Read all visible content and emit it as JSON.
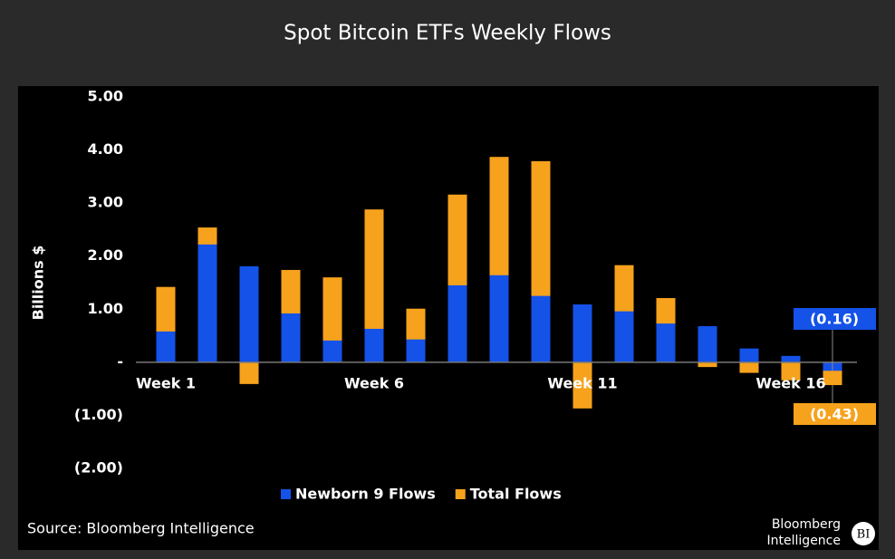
{
  "chart_data": {
    "type": "bar",
    "title": "Spot Bitcoin ETFs Weekly Flows",
    "y_label": "Billions $",
    "source": "Source: Bloomberg Intelligence",
    "brand": {
      "line1": "Bloomberg",
      "line2": "Intelligence",
      "badge": "BI"
    },
    "categories": [
      "Week 1",
      null,
      null,
      null,
      null,
      "Week 6",
      null,
      null,
      null,
      null,
      "Week 11",
      null,
      null,
      null,
      null,
      "Week 16",
      null
    ],
    "series": [
      {
        "name": "Newborn 9 Flows",
        "color": "#1452e8",
        "values": [
          0.58,
          2.22,
          1.81,
          0.92,
          0.41,
          0.63,
          0.43,
          1.45,
          1.64,
          1.25,
          1.09,
          0.96,
          0.73,
          0.68,
          0.26,
          0.12,
          -0.16
        ],
        "value_labels": [
          null,
          null,
          null,
          null,
          null,
          null,
          null,
          null,
          null,
          null,
          null,
          null,
          null,
          null,
          null,
          null,
          "(0.16)"
        ]
      },
      {
        "name": "Total Flows",
        "color": "#f6a21c",
        "values": [
          1.42,
          2.54,
          -0.41,
          1.74,
          1.6,
          2.88,
          1.01,
          3.16,
          3.87,
          3.79,
          -0.87,
          1.83,
          1.21,
          -0.09,
          -0.2,
          -0.34,
          -0.43
        ],
        "value_labels": [
          null,
          null,
          null,
          null,
          null,
          null,
          null,
          null,
          null,
          null,
          null,
          null,
          null,
          null,
          null,
          null,
          "(0.43)"
        ]
      }
    ],
    "ylim": [
      -2,
      5
    ],
    "yticks": [
      {
        "value": 5,
        "label": "5.00"
      },
      {
        "value": 4,
        "label": "4.00"
      },
      {
        "value": 3,
        "label": "3.00"
      },
      {
        "value": 2,
        "label": "2.00"
      },
      {
        "value": 1,
        "label": "1.00"
      },
      {
        "value": 0,
        "label": "-"
      },
      {
        "value": -1,
        "label": "(1.00)"
      },
      {
        "value": -2,
        "label": "(2.00)"
      }
    ],
    "legend": "bottom"
  }
}
